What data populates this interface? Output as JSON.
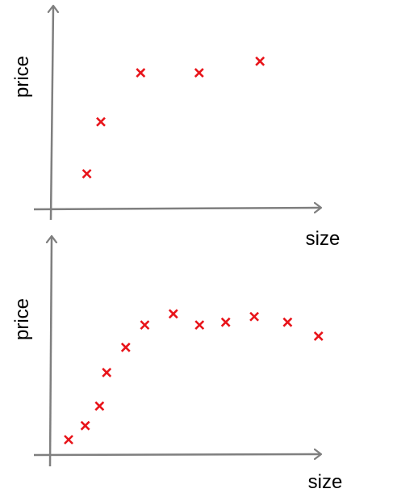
{
  "colors": {
    "axis": "#7f7f7f",
    "marker": "#e8141a"
  },
  "chart_data": [
    {
      "type": "scatter",
      "xlabel": "size",
      "ylabel": "price",
      "grid": false,
      "legend": "none",
      "axes_ticks": false,
      "marker": "x",
      "points": [
        {
          "x": 1.0,
          "y": 1.0
        },
        {
          "x": 1.6,
          "y": 2.8
        },
        {
          "x": 3.3,
          "y": 4.5
        },
        {
          "x": 5.8,
          "y": 4.5
        },
        {
          "x": 8.4,
          "y": 4.9
        }
      ]
    },
    {
      "type": "scatter",
      "xlabel": "size",
      "ylabel": "price",
      "grid": false,
      "legend": "none",
      "axes_ticks": false,
      "marker": "x",
      "points": [
        {
          "x": 0.5,
          "y": 0.5
        },
        {
          "x": 1.2,
          "y": 1.0
        },
        {
          "x": 1.8,
          "y": 1.7
        },
        {
          "x": 2.1,
          "y": 2.9
        },
        {
          "x": 2.9,
          "y": 3.8
        },
        {
          "x": 3.7,
          "y": 4.6
        },
        {
          "x": 4.9,
          "y": 5.0
        },
        {
          "x": 6.0,
          "y": 4.6
        },
        {
          "x": 7.1,
          "y": 4.7
        },
        {
          "x": 8.3,
          "y": 4.9
        },
        {
          "x": 9.7,
          "y": 4.7
        },
        {
          "x": 11.0,
          "y": 4.2
        }
      ]
    }
  ]
}
